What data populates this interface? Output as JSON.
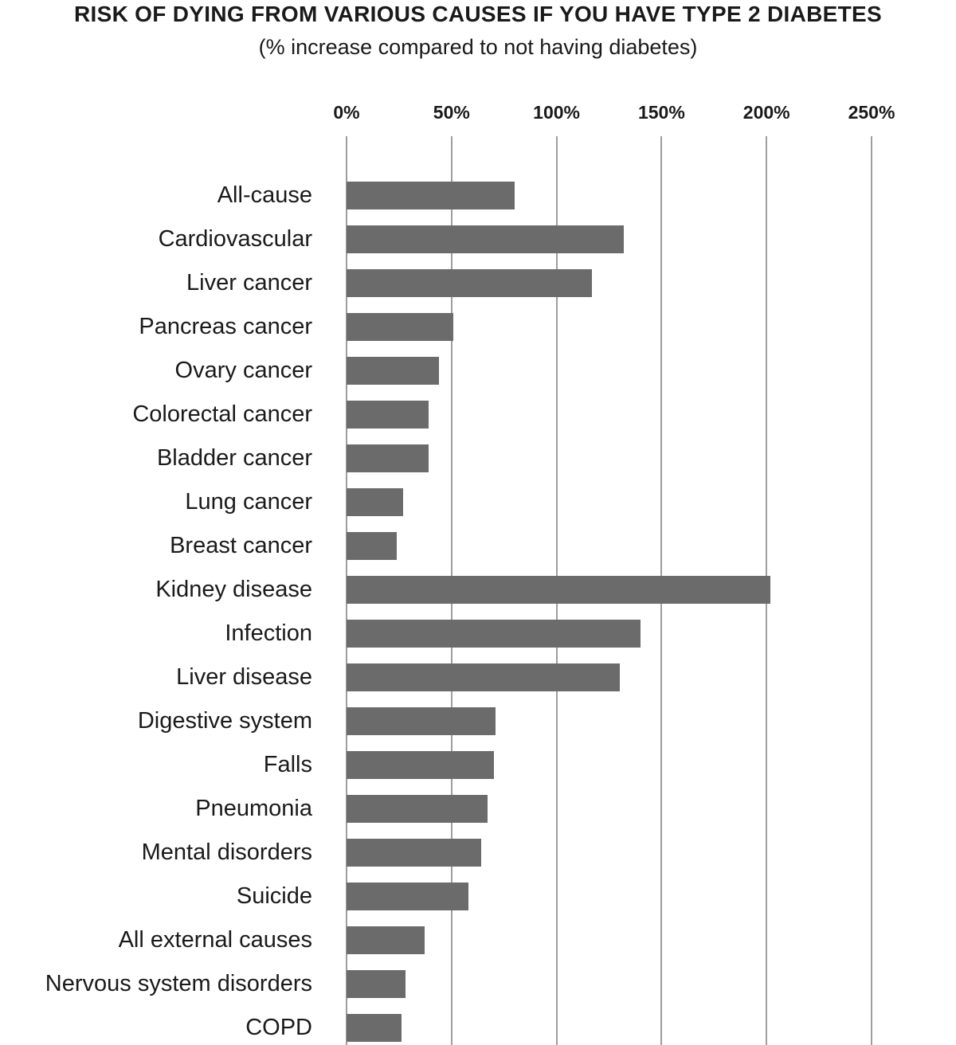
{
  "colors": {
    "bar": "#6b6b6b",
    "gridline": "#9e9e9e",
    "text": "#1a1a1a",
    "background": "#ffffff"
  },
  "chart_data": {
    "type": "bar",
    "orientation": "horizontal",
    "title": "RISK OF DYING FROM VARIOUS CAUSES IF YOU HAVE TYPE 2 DIABETES",
    "subtitle": "(% increase compared to not having diabetes)",
    "unit": "% increase vs not having diabetes",
    "categories": [
      "All-cause",
      "Cardiovascular",
      "Liver cancer",
      "Pancreas cancer",
      "Ovary cancer",
      "Colorectal cancer",
      "Bladder cancer",
      "Lung cancer",
      "Breast cancer",
      "Kidney disease",
      "Infection",
      "Liver disease",
      "Digestive system",
      "Falls",
      "Pneumonia",
      "Mental disorders",
      "Suicide",
      "All external causes",
      "Nervous system disorders",
      "COPD"
    ],
    "values": [
      80,
      132,
      117,
      51,
      44,
      39,
      39,
      27,
      24,
      202,
      140,
      130,
      71,
      70,
      67,
      64,
      58,
      37,
      28,
      26
    ],
    "x_ticks": [
      {
        "label": "0%",
        "value": 0
      },
      {
        "label": "50%",
        "value": 50
      },
      {
        "label": "100%",
        "value": 100
      },
      {
        "label": "150%",
        "value": 150
      },
      {
        "label": "200%",
        "value": 200
      },
      {
        "label": "250%",
        "value": 250
      }
    ],
    "xlim": [
      0,
      250
    ],
    "xlabel": "",
    "ylabel": "",
    "grid": "vertical",
    "legend": "none",
    "axis_position": "top"
  }
}
